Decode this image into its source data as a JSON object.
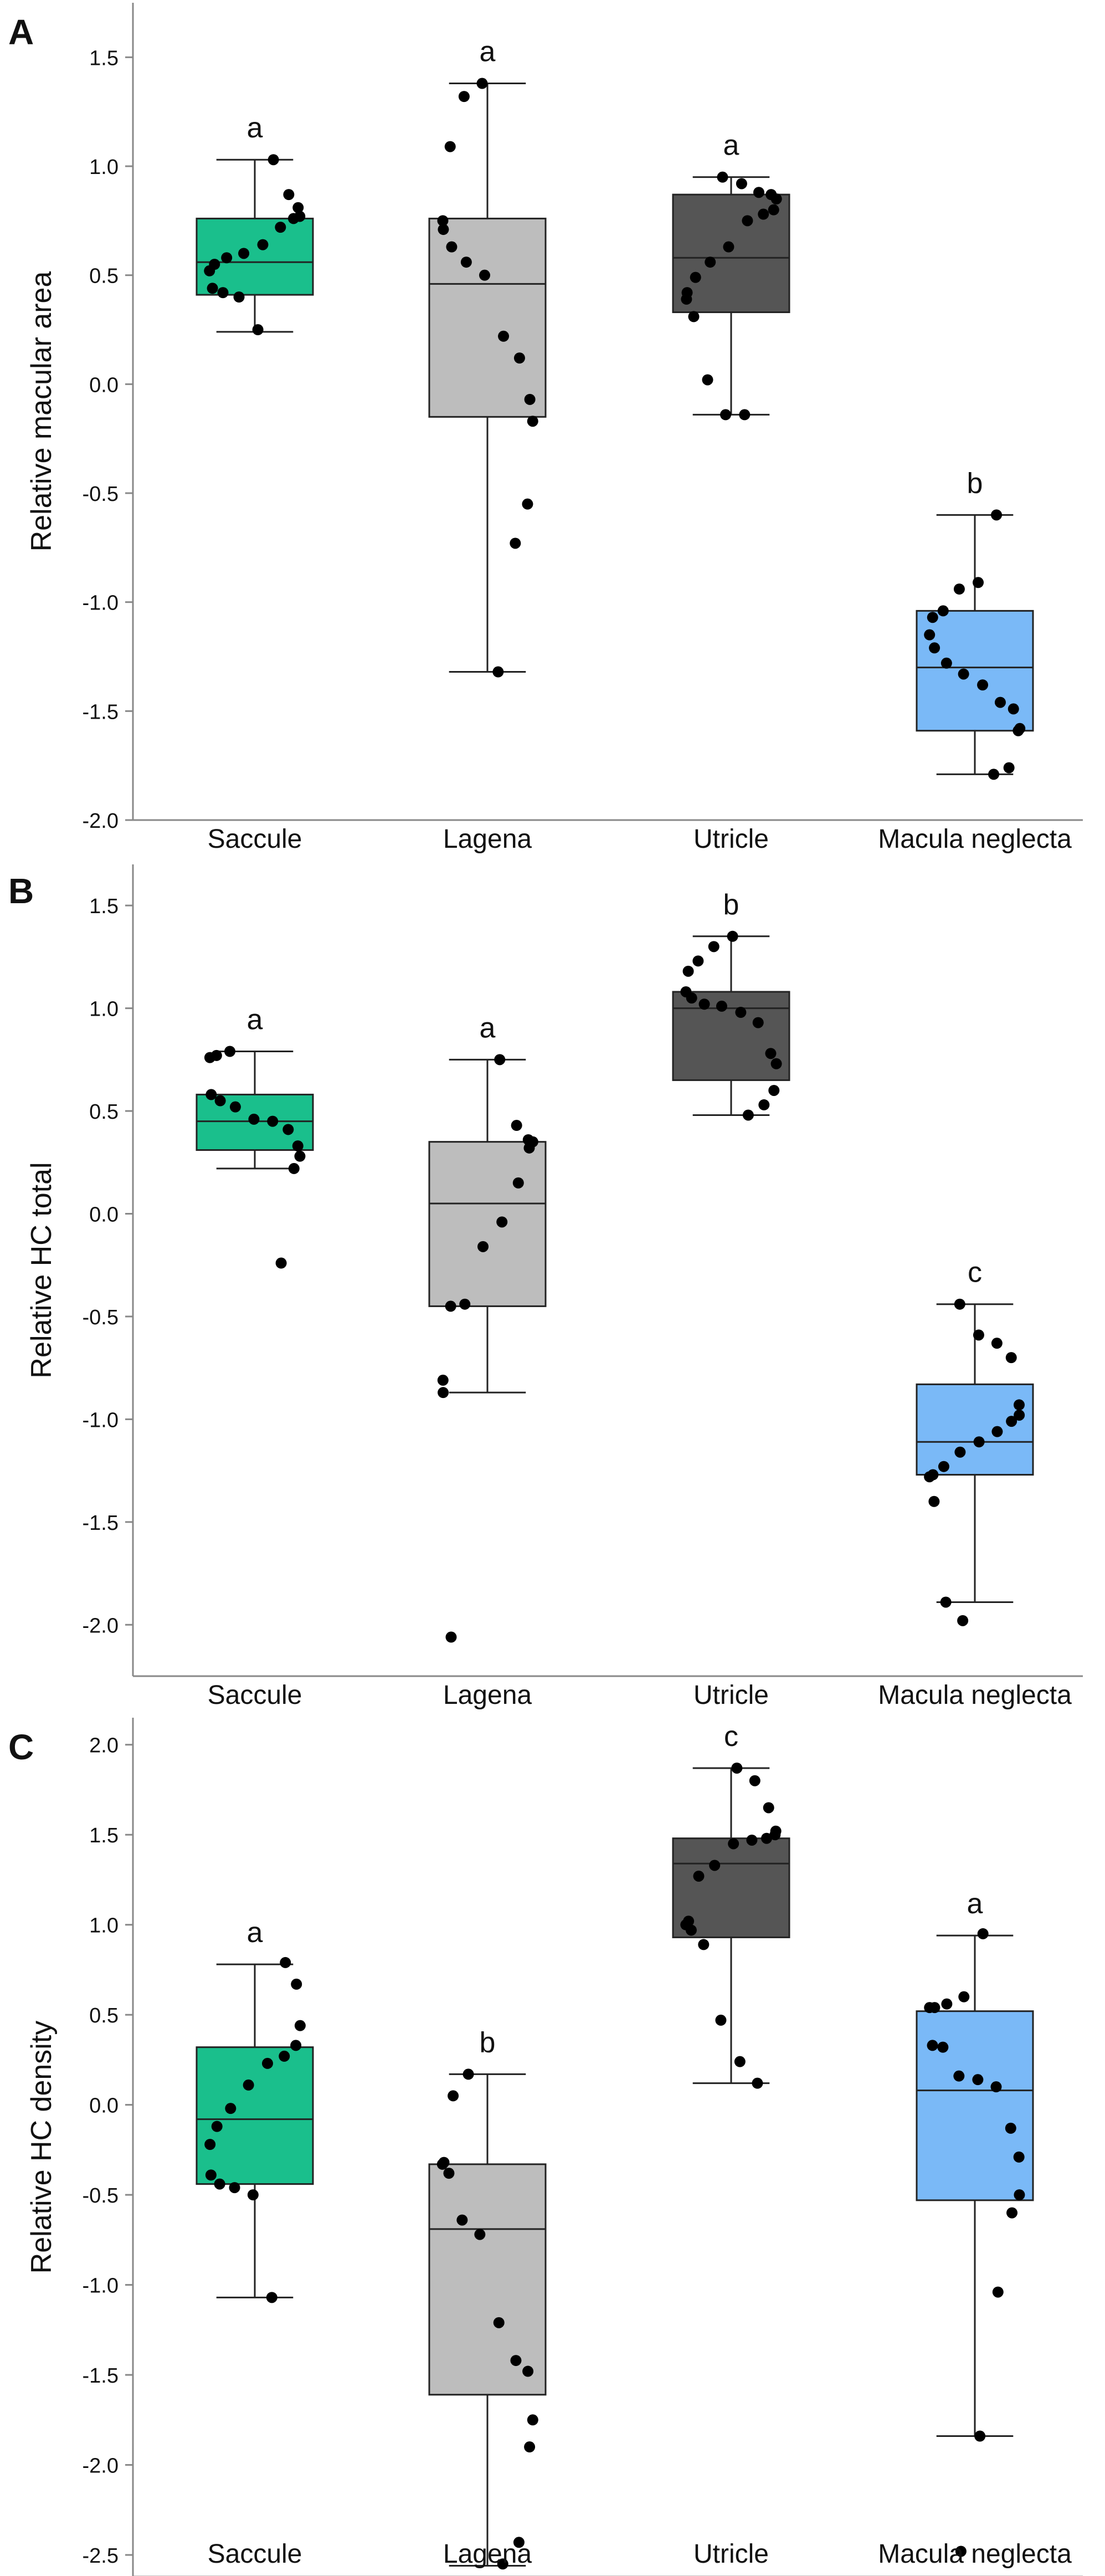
{
  "colors": {
    "saccule": "#1abf8c",
    "lagena": "#bdbdbd",
    "utricle": "#555555",
    "macula_neglecta": "#7ab9f7",
    "axis": "#888888",
    "points": "#000000"
  },
  "chart_data": [
    {
      "panel_label": "A",
      "type": "box",
      "ylabel": "Relative macular area",
      "categories": [
        "Saccule",
        "Lagena",
        "Utricle",
        "Macula neglecta"
      ],
      "yticks": [
        -2.0,
        -1.5,
        -1.0,
        -0.5,
        0.0,
        0.5,
        1.0,
        1.5
      ],
      "ytick_labels": [
        "-2.0",
        "-1.5",
        "-1.0",
        "-0.5",
        "0.0",
        "0.5",
        "1.0",
        "1.5"
      ],
      "ylim": [
        -2.0,
        1.75
      ],
      "boxes": [
        {
          "name": "Saccule",
          "color_key": "saccule",
          "whisker_low": 0.24,
          "q1": 0.41,
          "median": 0.56,
          "q3": 0.76,
          "whisker_high": 1.03,
          "letter": "a",
          "points": [
            1.03,
            0.87,
            0.81,
            0.77,
            0.76,
            0.72,
            0.64,
            0.6,
            0.58,
            0.55,
            0.52,
            0.44,
            0.42,
            0.4,
            0.25
          ]
        },
        {
          "name": "Lagena",
          "color_key": "lagena",
          "whisker_low": -1.32,
          "q1": -0.15,
          "median": 0.46,
          "q3": 0.76,
          "whisker_high": 1.38,
          "letter": "a",
          "points": [
            1.38,
            1.32,
            1.09,
            0.75,
            0.71,
            0.63,
            0.56,
            0.5,
            0.22,
            0.12,
            -0.07,
            -0.17,
            -0.55,
            -0.73,
            -1.32
          ]
        },
        {
          "name": "Utricle",
          "color_key": "utricle",
          "whisker_low": -0.14,
          "q1": 0.33,
          "median": 0.58,
          "q3": 0.87,
          "whisker_high": 0.95,
          "letter": "a",
          "points": [
            0.95,
            0.92,
            0.88,
            0.87,
            0.85,
            0.8,
            0.78,
            0.75,
            0.63,
            0.56,
            0.49,
            0.42,
            0.39,
            0.31,
            0.02,
            -0.14,
            -0.14
          ]
        },
        {
          "name": "Macula neglecta",
          "color_key": "macula_neglecta",
          "whisker_low": -1.79,
          "q1": -1.59,
          "median": -1.3,
          "q3": -1.04,
          "whisker_high": -0.6,
          "letter": "b",
          "points": [
            -0.6,
            -0.91,
            -0.94,
            -1.04,
            -1.07,
            -1.15,
            -1.21,
            -1.28,
            -1.33,
            -1.38,
            -1.46,
            -1.49,
            -1.58,
            -1.59,
            -1.76,
            -1.79
          ]
        }
      ]
    },
    {
      "panel_label": "B",
      "type": "box",
      "ylabel": "Relative HC total",
      "categories": [
        "Saccule",
        "Lagena",
        "Utricle",
        "Macula neglecta"
      ],
      "yticks": [
        -2.0,
        -1.5,
        -1.0,
        -0.5,
        0.0,
        0.5,
        1.0,
        1.5
      ],
      "ytick_labels": [
        "-2.0",
        "-1.5",
        "-1.0",
        "-0.5",
        "0.0",
        "0.5",
        "1.0",
        "1.5"
      ],
      "ylim": [
        -2.25,
        1.7
      ],
      "boxes": [
        {
          "name": "Saccule",
          "color_key": "saccule",
          "whisker_low": 0.22,
          "q1": 0.31,
          "median": 0.45,
          "q3": 0.58,
          "whisker_high": 0.79,
          "letter": "a",
          "points": [
            0.79,
            0.77,
            0.76,
            0.58,
            0.55,
            0.52,
            0.46,
            0.45,
            0.41,
            0.33,
            0.28,
            0.22,
            -0.24
          ]
        },
        {
          "name": "Lagena",
          "color_key": "lagena",
          "whisker_low": -0.87,
          "q1": -0.45,
          "median": 0.05,
          "q3": 0.35,
          "whisker_high": 0.75,
          "letter": "a",
          "points": [
            0.75,
            0.43,
            0.36,
            0.35,
            0.32,
            0.15,
            -0.04,
            -0.16,
            -0.44,
            -0.45,
            -0.81,
            -0.87,
            -2.06
          ]
        },
        {
          "name": "Utricle",
          "color_key": "utricle",
          "whisker_low": 0.48,
          "q1": 0.65,
          "median": 1.0,
          "q3": 1.08,
          "whisker_high": 1.35,
          "letter": "b",
          "points": [
            1.35,
            1.3,
            1.23,
            1.18,
            1.08,
            1.05,
            1.02,
            1.01,
            0.98,
            0.93,
            0.78,
            0.73,
            0.6,
            0.53,
            0.48
          ]
        },
        {
          "name": "Macula neglecta",
          "color_key": "macula_neglecta",
          "whisker_low": -1.89,
          "q1": -1.27,
          "median": -1.11,
          "q3": -0.83,
          "whisker_high": -0.44,
          "letter": "c",
          "points": [
            -0.44,
            -0.59,
            -0.63,
            -0.7,
            -0.93,
            -0.98,
            -1.01,
            -1.06,
            -1.11,
            -1.16,
            -1.23,
            -1.27,
            -1.28,
            -1.4,
            -1.89,
            -1.98
          ]
        }
      ]
    },
    {
      "panel_label": "C",
      "type": "box",
      "ylabel": "Relative HC density",
      "categories": [
        "Saccule",
        "Lagena",
        "Utricle",
        "Macula neglecta"
      ],
      "yticks": [
        -2.5,
        -2.0,
        -1.5,
        -1.0,
        -0.5,
        0.0,
        0.5,
        1.0,
        1.5,
        2.0
      ],
      "ytick_labels": [
        "-2.5",
        "-2.0",
        "-1.5",
        "-1.0",
        "-0.5",
        "0.0",
        "0.5",
        "1.0",
        "1.5",
        "2.0"
      ],
      "ylim": [
        -2.62,
        2.15
      ],
      "boxes": [
        {
          "name": "Saccule",
          "color_key": "saccule",
          "whisker_low": -1.07,
          "q1": -0.44,
          "median": -0.08,
          "q3": 0.32,
          "whisker_high": 0.78,
          "letter": "a",
          "points": [
            0.79,
            0.67,
            0.44,
            0.33,
            0.27,
            0.23,
            0.11,
            -0.02,
            -0.12,
            -0.22,
            -0.39,
            -0.44,
            -0.46,
            -0.5,
            -1.07
          ]
        },
        {
          "name": "Lagena",
          "color_key": "lagena",
          "whisker_low": -2.56,
          "q1": -1.61,
          "median": -0.69,
          "q3": -0.33,
          "whisker_high": 0.17,
          "letter": "b",
          "points": [
            0.17,
            0.05,
            -0.32,
            -0.33,
            -0.38,
            -0.64,
            -0.72,
            -1.21,
            -1.42,
            -1.48,
            -1.75,
            -1.9,
            -2.43,
            -2.55
          ]
        },
        {
          "name": "Utricle",
          "color_key": "utricle",
          "whisker_low": 0.12,
          "q1": 0.93,
          "median": 1.34,
          "q3": 1.48,
          "whisker_high": 1.87,
          "letter": "c",
          "points": [
            1.87,
            1.8,
            1.65,
            1.52,
            1.5,
            1.48,
            1.47,
            1.45,
            1.33,
            1.27,
            1.02,
            1.0,
            0.97,
            0.89,
            0.47,
            0.24,
            0.12
          ]
        },
        {
          "name": "Macula neglecta",
          "color_key": "macula_neglecta",
          "whisker_low": -1.84,
          "q1": -0.53,
          "median": 0.08,
          "q3": 0.52,
          "whisker_high": 0.94,
          "letter": "a",
          "points": [
            0.95,
            0.6,
            0.56,
            0.54,
            0.54,
            0.33,
            0.32,
            0.16,
            0.14,
            0.1,
            -0.13,
            -0.29,
            -0.5,
            -0.6,
            -1.04,
            -1.84,
            -2.48
          ]
        }
      ]
    }
  ]
}
